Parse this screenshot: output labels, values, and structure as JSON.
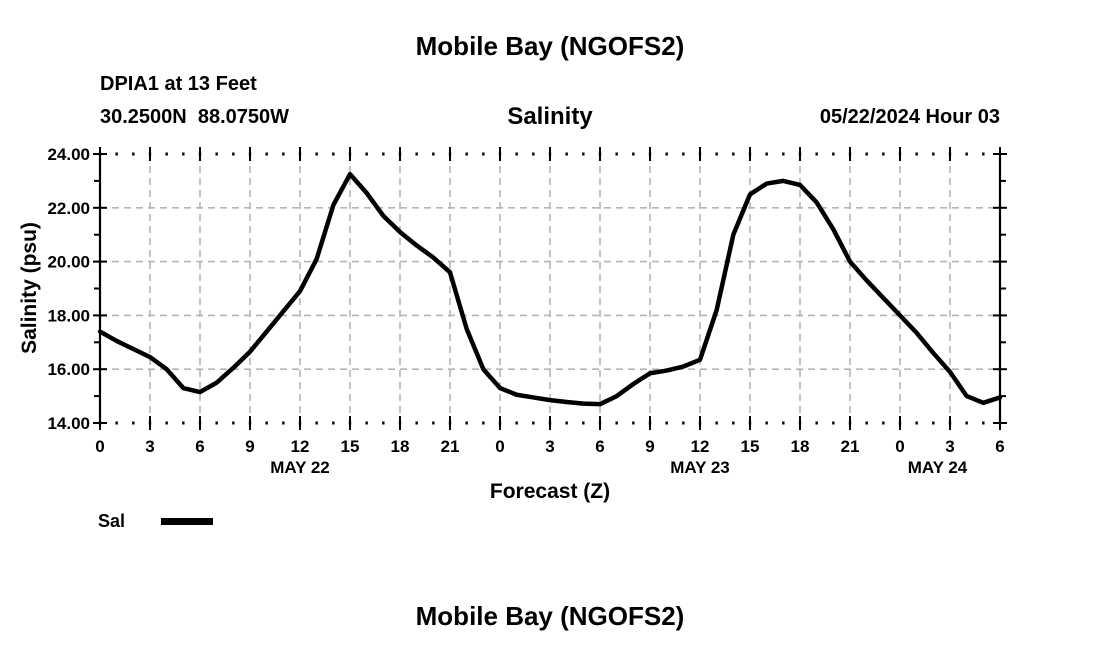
{
  "header": {
    "main_title": "Mobile Bay (NGOFS2)",
    "station_line1": "DPIA1 at 13 Feet",
    "station_line2": "30.2500N  88.0750W",
    "chart_subtitle": "Salinity",
    "run_info": "05/22/2024 Hour 03"
  },
  "footer": {
    "next_title": "Mobile Bay (NGOFS2)"
  },
  "colors": {
    "line": "#000000",
    "grid": "#b5b5b5",
    "text": "#000000",
    "background": "#ffffff"
  },
  "chart_data": {
    "type": "line",
    "title": "Mobile Bay (NGOFS2)",
    "subtitle": "Salinity",
    "station": "DPIA1 at 13 Feet",
    "location": "30.2500N  88.0750W",
    "model_run": "05/22/2024 Hour 03",
    "xlabel": "Forecast (Z)",
    "ylabel": "Salinity (psu)",
    "xlim": [
      0,
      54
    ],
    "ylim": [
      14,
      24
    ],
    "x_major_step": 3,
    "x_minor_step": 1,
    "y_minor_step": 1,
    "grid": "dashed-gray-at-major-ticks",
    "y_major_ticks": [
      14,
      16,
      18,
      20,
      22,
      24
    ],
    "y_tick_labels": [
      "14.00",
      "16.00",
      "18.00",
      "20.00",
      "22.00",
      "24.00"
    ],
    "x_tick_hours": [
      0,
      3,
      6,
      9,
      12,
      15,
      18,
      21,
      24,
      27,
      30,
      33,
      36,
      39,
      42,
      45,
      48,
      51,
      54
    ],
    "x_tick_labels": [
      "0",
      "3",
      "6",
      "9",
      "12",
      "15",
      "18",
      "21",
      "0",
      "3",
      "6",
      "9",
      "12",
      "15",
      "18",
      "21",
      "0",
      "3",
      "6"
    ],
    "date_labels": [
      {
        "label": "MAY 22",
        "hour": 12
      },
      {
        "label": "MAY 23",
        "hour": 36
      },
      {
        "label": "MAY 24",
        "hour": 50.25
      }
    ],
    "legend": {
      "label": "Sal",
      "position": "bottom-left"
    },
    "series": [
      {
        "name": "Sal",
        "color": "#000000",
        "x": [
          0,
          1,
          2,
          3,
          4,
          5,
          6,
          7,
          8,
          9,
          10,
          11,
          12,
          13,
          14,
          15,
          16,
          17,
          18,
          19,
          20,
          21,
          22,
          23,
          24,
          25,
          26,
          27,
          28,
          29,
          30,
          31,
          32,
          33,
          34,
          35,
          36,
          37,
          38,
          39,
          40,
          41,
          42,
          43,
          44,
          45,
          46,
          47,
          48,
          49,
          50,
          51,
          52,
          53,
          54
        ],
        "values": [
          17.4,
          17.05,
          16.75,
          16.45,
          16.0,
          15.3,
          15.15,
          15.5,
          16.05,
          16.65,
          17.4,
          18.15,
          18.9,
          20.1,
          22.1,
          23.25,
          22.55,
          21.7,
          21.1,
          20.6,
          20.15,
          19.6,
          17.5,
          16.0,
          15.3,
          15.05,
          14.95,
          14.85,
          14.78,
          14.72,
          14.7,
          15.0,
          15.45,
          15.85,
          15.95,
          16.1,
          16.35,
          18.2,
          21.0,
          22.5,
          22.9,
          23.0,
          22.85,
          22.2,
          21.2,
          20.0,
          19.3,
          18.65,
          18.0,
          17.35,
          16.6,
          15.9,
          15.0,
          14.75,
          14.95
        ]
      }
    ]
  }
}
